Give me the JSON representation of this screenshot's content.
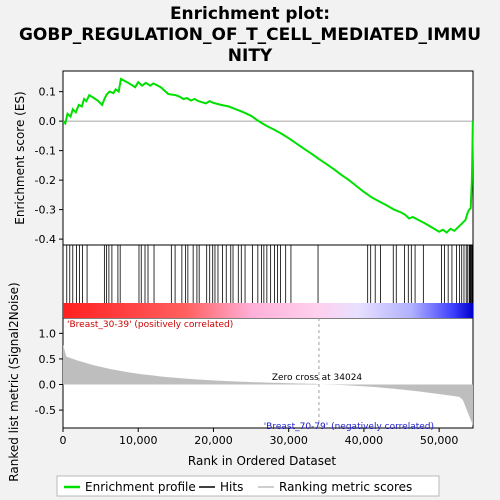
{
  "chart_data": {
    "type": "line",
    "title_lines": [
      "Enrichment plot:",
      "GOBP_REGULATION_OF_T_CELL_MEDIATED_IMMU",
      "NITY"
    ],
    "ylabel_top": "Enrichment score (ES)",
    "ylabel_bottom": "Ranked list metric (Signal2Noise)",
    "xlabel": "Rank in Ordered Dataset",
    "x_ticks": [
      0,
      10000,
      20000,
      30000,
      40000,
      50000
    ],
    "x_tick_labels": [
      "0",
      "10,000",
      "20,000",
      "30,000",
      "40,000",
      "50,000"
    ],
    "xlim": [
      0,
      54500
    ],
    "es_ylim": [
      -0.42,
      0.17
    ],
    "es_ticks": [
      0.1,
      0.0,
      -0.1,
      -0.2,
      -0.3,
      -0.4
    ],
    "es_tick_labels": [
      "0.1",
      "0.0",
      "-0.1",
      "-0.2",
      "-0.3",
      "-0.4"
    ],
    "metric_ylim": [
      -0.85,
      1.3
    ],
    "metric_ticks": [
      1.0,
      0.5,
      0.0,
      -0.5
    ],
    "metric_tick_labels": [
      "1.0",
      "0.5",
      "0.0",
      "-0.5"
    ],
    "zero_cross": 34024,
    "zero_cross_label": "Zero cross at 34024",
    "pos_label": "'Breast_30-39' (positively correlated)",
    "neg_label": "'Breast_70-79' (negatively correlated)",
    "legend": [
      "Enrichment profile",
      "Hits",
      "Ranking metric scores"
    ],
    "colors": {
      "es_line": "#00e000",
      "pos": "#ff0000",
      "neg": "#0000ff",
      "metric_fill": "#bebebe",
      "pos_text": "#cc0000",
      "neg_text": "#1a1acc"
    },
    "es_curve": [
      [
        0,
        0.0
      ],
      [
        300,
        -0.008
      ],
      [
        600,
        0.025
      ],
      [
        1000,
        0.015
      ],
      [
        1300,
        0.04
      ],
      [
        1700,
        0.03
      ],
      [
        2100,
        0.055
      ],
      [
        2500,
        0.05
      ],
      [
        2800,
        0.075
      ],
      [
        3100,
        0.068
      ],
      [
        3500,
        0.088
      ],
      [
        4000,
        0.08
      ],
      [
        4600,
        0.07
      ],
      [
        5200,
        0.055
      ],
      [
        5500,
        0.075
      ],
      [
        5800,
        0.09
      ],
      [
        6200,
        0.1
      ],
      [
        6700,
        0.095
      ],
      [
        7000,
        0.108
      ],
      [
        7400,
        0.1
      ],
      [
        7700,
        0.143
      ],
      [
        8300,
        0.135
      ],
      [
        9000,
        0.125
      ],
      [
        9600,
        0.115
      ],
      [
        10000,
        0.132
      ],
      [
        10500,
        0.12
      ],
      [
        11000,
        0.13
      ],
      [
        11600,
        0.12
      ],
      [
        12000,
        0.128
      ],
      [
        13000,
        0.115
      ],
      [
        14000,
        0.092
      ],
      [
        15000,
        0.088
      ],
      [
        15500,
        0.083
      ],
      [
        16000,
        0.075
      ],
      [
        16500,
        0.078
      ],
      [
        17000,
        0.07
      ],
      [
        17500,
        0.075
      ],
      [
        18000,
        0.068
      ],
      [
        19000,
        0.06
      ],
      [
        19500,
        0.068
      ],
      [
        20000,
        0.062
      ],
      [
        21000,
        0.055
      ],
      [
        22000,
        0.05
      ],
      [
        23000,
        0.04
      ],
      [
        24000,
        0.03
      ],
      [
        25000,
        0.018
      ],
      [
        26000,
        0.0
      ],
      [
        27000,
        -0.015
      ],
      [
        28000,
        -0.028
      ],
      [
        29000,
        -0.042
      ],
      [
        30000,
        -0.058
      ],
      [
        31000,
        -0.075
      ],
      [
        32000,
        -0.093
      ],
      [
        33000,
        -0.11
      ],
      [
        34000,
        -0.128
      ],
      [
        35000,
        -0.145
      ],
      [
        36000,
        -0.163
      ],
      [
        37000,
        -0.182
      ],
      [
        38000,
        -0.2
      ],
      [
        39000,
        -0.22
      ],
      [
        40000,
        -0.24
      ],
      [
        41000,
        -0.258
      ],
      [
        42000,
        -0.272
      ],
      [
        43000,
        -0.285
      ],
      [
        44000,
        -0.3
      ],
      [
        45000,
        -0.31
      ],
      [
        45500,
        -0.318
      ],
      [
        46000,
        -0.33
      ],
      [
        46500,
        -0.325
      ],
      [
        47000,
        -0.332
      ],
      [
        48000,
        -0.345
      ],
      [
        49000,
        -0.36
      ],
      [
        50000,
        -0.375
      ],
      [
        50500,
        -0.368
      ],
      [
        51000,
        -0.378
      ],
      [
        51500,
        -0.365
      ],
      [
        52000,
        -0.372
      ],
      [
        52500,
        -0.36
      ],
      [
        53000,
        -0.348
      ],
      [
        53500,
        -0.335
      ],
      [
        53800,
        -0.31
      ],
      [
        54000,
        -0.3
      ],
      [
        54200,
        -0.295
      ],
      [
        54350,
        -0.2
      ],
      [
        54420,
        -0.1
      ],
      [
        54480,
        0.0
      ]
    ],
    "hits": [
      500,
      900,
      1300,
      1800,
      2200,
      2600,
      3200,
      5500,
      5800,
      6100,
      6500,
      7300,
      7600,
      10100,
      10400,
      10900,
      11300,
      12100,
      14400,
      14900,
      15800,
      16300,
      16600,
      17300,
      17800,
      18100,
      19100,
      19500,
      19900,
      20200,
      20600,
      21200,
      21700,
      22300,
      22600,
      23300,
      23700,
      24200,
      25200,
      25900,
      26400,
      26700,
      27100,
      27600,
      28100,
      28500,
      28900,
      29600,
      30300,
      33900,
      40500,
      40900,
      41500,
      42200,
      43900,
      44300,
      45400,
      45900,
      46300,
      46800,
      47900,
      50300,
      50700,
      51200,
      51700,
      52300,
      52700,
      53000,
      53300,
      53600,
      53800,
      54000,
      54100,
      54200,
      54300,
      54400
    ]
  }
}
